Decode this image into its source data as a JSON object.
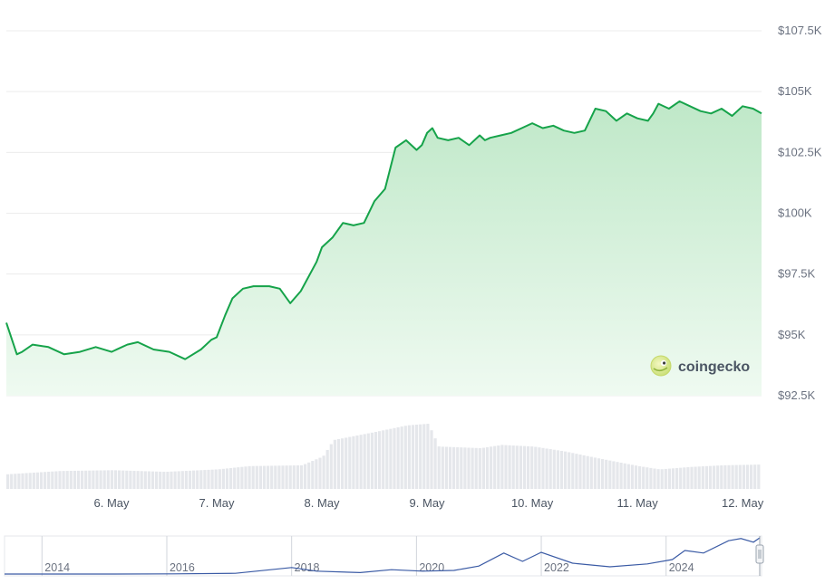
{
  "watermark": "coingecko",
  "colors": {
    "price_line": "#16a34a",
    "price_fill_top": "#bfe8c8",
    "volume_bar": "#e5e7eb",
    "nav_line": "#3b5ba5",
    "grid": "#ececec"
  },
  "chart_data": [
    {
      "type": "area",
      "title": "",
      "y_axis_position": "right",
      "yticks": [
        92500,
        95000,
        97500,
        100000,
        102500,
        105000,
        107500
      ],
      "ytick_labels": [
        "$92.5K",
        "$95K",
        "$97.5K",
        "$100K",
        "$102.5K",
        "$105K",
        "$107.5K"
      ],
      "ylim": [
        92500,
        107500
      ],
      "x_start": "5. May",
      "xlim": [
        5.0,
        12.18
      ],
      "xticks": [
        6,
        7,
        8,
        9,
        10,
        11,
        12
      ],
      "xtick_labels": [
        "6. May",
        "7. May",
        "8. May",
        "9. May",
        "10. May",
        "11. May",
        "12. May"
      ],
      "grid": true,
      "price_series": {
        "x": [
          5.0,
          5.1,
          5.15,
          5.25,
          5.4,
          5.55,
          5.7,
          5.85,
          6.0,
          6.15,
          6.25,
          6.4,
          6.55,
          6.7,
          6.85,
          6.95,
          7.0,
          7.08,
          7.15,
          7.25,
          7.35,
          7.5,
          7.6,
          7.7,
          7.8,
          7.95,
          8.0,
          8.1,
          8.2,
          8.3,
          8.4,
          8.5,
          8.6,
          8.7,
          8.8,
          8.9,
          8.95,
          9.0,
          9.05,
          9.1,
          9.2,
          9.3,
          9.4,
          9.5,
          9.55,
          9.6,
          9.7,
          9.8,
          9.9,
          10.0,
          10.1,
          10.2,
          10.3,
          10.4,
          10.5,
          10.6,
          10.7,
          10.8,
          10.9,
          11.0,
          11.1,
          11.15,
          11.2,
          11.3,
          11.4,
          11.5,
          11.6,
          11.7,
          11.8,
          11.9,
          12.0,
          12.1,
          12.18
        ],
        "values": [
          95.5,
          94.2,
          94.3,
          94.6,
          94.5,
          94.2,
          94.3,
          94.5,
          94.3,
          94.6,
          94.7,
          94.4,
          94.3,
          94.0,
          94.4,
          94.8,
          94.9,
          95.8,
          96.5,
          96.9,
          97.0,
          97.0,
          96.9,
          96.3,
          96.8,
          98.0,
          98.6,
          99.0,
          99.6,
          99.5,
          99.6,
          100.5,
          101.0,
          102.7,
          103.0,
          102.6,
          102.8,
          103.3,
          103.5,
          103.1,
          103.0,
          103.1,
          102.8,
          103.2,
          103.0,
          103.1,
          103.2,
          103.3,
          103.5,
          103.7,
          103.5,
          103.6,
          103.4,
          103.3,
          103.4,
          104.3,
          104.2,
          103.8,
          104.1,
          103.9,
          103.8,
          104.1,
          104.5,
          104.3,
          104.6,
          104.4,
          104.2,
          104.1,
          104.3,
          104.0,
          104.4,
          104.3,
          104.1
        ]
      },
      "volume_series": {
        "x": [
          5.0,
          5.5,
          6.0,
          6.5,
          7.0,
          7.3,
          7.8,
          8.0,
          8.1,
          8.5,
          8.8,
          9.0,
          9.1,
          9.5,
          9.7,
          10.0,
          10.3,
          10.6,
          11.0,
          11.2,
          11.5,
          11.8,
          12.18
        ],
        "values": [
          0.18,
          0.22,
          0.23,
          0.21,
          0.24,
          0.28,
          0.29,
          0.4,
          0.6,
          0.7,
          0.78,
          0.8,
          0.52,
          0.5,
          0.54,
          0.52,
          0.46,
          0.38,
          0.28,
          0.24,
          0.27,
          0.29,
          0.3
        ]
      }
    },
    {
      "type": "line",
      "title": "",
      "xlim": [
        2013.3,
        2025.4
      ],
      "xtick_labels": [
        "2014",
        "2016",
        "2018",
        "2020",
        "2022",
        "2024"
      ],
      "xticks": [
        2014,
        2016,
        2018,
        2020,
        2022,
        2024
      ],
      "series": [
        {
          "x": [
            2013.3,
            2014.0,
            2015.0,
            2016.0,
            2017.0,
            2017.9,
            2018.3,
            2019.0,
            2019.5,
            2020.0,
            2020.5,
            2020.9,
            2021.3,
            2021.6,
            2021.9,
            2022.4,
            2023.0,
            2023.6,
            2024.0,
            2024.2,
            2024.5,
            2024.9,
            2025.1,
            2025.3,
            2025.4
          ],
          "values": [
            0.0,
            0.0,
            0.0,
            0.005,
            0.02,
            0.18,
            0.08,
            0.04,
            0.12,
            0.08,
            0.1,
            0.22,
            0.58,
            0.35,
            0.6,
            0.3,
            0.2,
            0.28,
            0.4,
            0.65,
            0.58,
            0.92,
            0.98,
            0.88,
            1.0
          ]
        }
      ]
    }
  ]
}
